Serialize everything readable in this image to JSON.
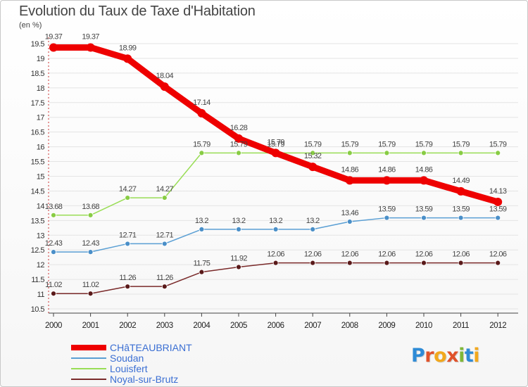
{
  "title": "Evolution du Taux de Taxe d'Habitation",
  "unit": "(en %)",
  "logo": {
    "letters": [
      {
        "ch": "P",
        "color": "#2e8bd6"
      },
      {
        "ch": "r",
        "color": "#e0522a"
      },
      {
        "ch": "o",
        "color": "#f2a81d"
      },
      {
        "ch": "x",
        "color": "#e0522a"
      },
      {
        "ch": "i",
        "color": "#7fb838"
      },
      {
        "ch": "t",
        "color": "#2e8bd6"
      },
      {
        "ch": "i",
        "color": "#f2a81d"
      }
    ]
  },
  "chart_data": {
    "type": "line",
    "title": "Evolution du Taux de Taxe d'Habitation",
    "ylabel": "(en %)",
    "xlabel": "",
    "x": [
      "2000",
      "2001",
      "2002",
      "2003",
      "2004",
      "2005",
      "2006",
      "2007",
      "2008",
      "2009",
      "2010",
      "2011",
      "2012"
    ],
    "ylim": [
      10.5,
      19.5
    ],
    "yticks": [
      10.5,
      11,
      11.5,
      12,
      12.5,
      13,
      13.5,
      14,
      14.5,
      15,
      15.5,
      16,
      16.5,
      17,
      17.5,
      18,
      18.5,
      19,
      19.5
    ],
    "grid": "horizontal",
    "legend_position": "bottom-left",
    "series": [
      {
        "name": "Louisfert",
        "color": "#99dd55",
        "dot": "#88cc44",
        "width": 1.5,
        "r": 3.5,
        "values": [
          13.68,
          13.68,
          14.27,
          14.27,
          15.79,
          15.79,
          15.79,
          15.79,
          15.79,
          15.79,
          15.79,
          15.79,
          15.79
        ]
      },
      {
        "name": "Soudan",
        "color": "#5a9fd4",
        "dot": "#4a8fc8",
        "width": 1.5,
        "r": 3.5,
        "values": [
          12.43,
          12.43,
          12.71,
          12.71,
          13.2,
          13.2,
          13.2,
          13.2,
          13.46,
          13.59,
          13.59,
          13.59,
          13.59
        ]
      },
      {
        "name": "Noyal-sur-Brutz",
        "color": "#7a2a2a",
        "dot": "#5a1a1a",
        "width": 1.5,
        "r": 3.5,
        "values": [
          11.02,
          11.02,
          11.26,
          11.26,
          11.75,
          11.92,
          12.06,
          12.06,
          12.06,
          12.06,
          12.06,
          12.06,
          12.06
        ]
      },
      {
        "name": "CHâTEAUBRIANT",
        "color": "#ee0000",
        "dot": "#ee0000",
        "width": 9,
        "r": 6,
        "values": [
          19.37,
          19.37,
          18.99,
          18.04,
          17.14,
          16.28,
          15.79,
          15.32,
          14.86,
          14.86,
          14.86,
          14.49,
          14.13
        ]
      }
    ],
    "legend_order": [
      "CHâTEAUBRIANT",
      "Soudan",
      "Louisfert",
      "Noyal-sur-Brutz"
    ]
  }
}
